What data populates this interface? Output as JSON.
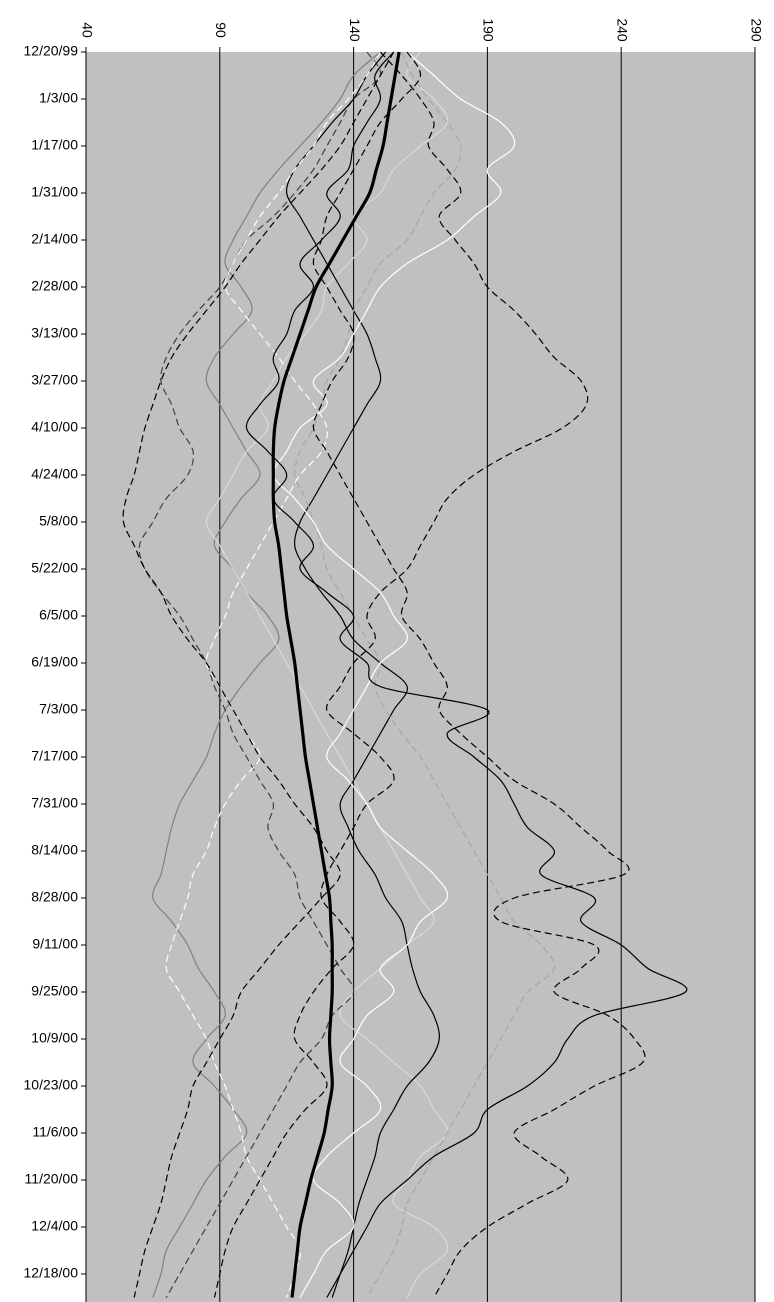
{
  "chart_data": {
    "type": "line",
    "categories": [
      "12/20/99",
      null,
      "1/3/00",
      null,
      "1/17/00",
      null,
      "1/31/00",
      null,
      "2/14/00",
      null,
      "2/28/00",
      null,
      "3/13/00",
      null,
      "3/27/00",
      null,
      "4/10/00",
      null,
      "4/24/00",
      null,
      "5/8/00",
      null,
      "5/22/00",
      null,
      "6/5/00",
      null,
      "6/19/00",
      null,
      "7/3/00",
      null,
      "7/17/00",
      null,
      "7/31/00",
      null,
      "8/14/00",
      null,
      "8/28/00",
      null,
      "9/11/00",
      null,
      "9/25/00",
      null,
      "10/9/00",
      null,
      "10/23/00",
      null,
      "11/6/00",
      null,
      "11/20/00",
      null,
      "12/4/00",
      null,
      "12/18/00",
      null
    ],
    "xlim": [
      40,
      290
    ],
    "xticks": [
      40,
      90,
      140,
      190,
      240,
      290
    ],
    "grid": true,
    "background": "#c0c0c0",
    "series": [
      {
        "color": "#808080",
        "dash": false,
        "width": 1.2,
        "values": [
          150,
          140,
          135,
          128,
          120,
          112,
          105,
          100,
          95,
          92,
          98,
          102,
          95,
          88,
          85,
          90,
          95,
          100,
          105,
          98,
          92,
          88,
          95,
          100,
          108,
          112,
          105,
          98,
          92,
          88,
          85,
          80,
          75,
          72,
          70,
          68,
          65,
          72,
          78,
          82,
          88,
          92,
          85,
          80,
          88,
          95,
          100,
          92,
          85,
          80,
          75,
          70,
          68,
          65
        ]
      },
      {
        "color": "#d9d9d9",
        "dash": false,
        "width": 1.2,
        "values": [
          165,
          160,
          170,
          175,
          165,
          155,
          150,
          140,
          145,
          138,
          130,
          128,
          122,
          115,
          110,
          105,
          108,
          100,
          95,
          90,
          85,
          90,
          95,
          100,
          105,
          110,
          115,
          120,
          125,
          130,
          135,
          140,
          145,
          150,
          155,
          160,
          165,
          170,
          160,
          150,
          140,
          135,
          145,
          155,
          165,
          170,
          175,
          165,
          160,
          155,
          170,
          175,
          165,
          160
        ]
      },
      {
        "color": "#404040",
        "dash": true,
        "width": 1.2,
        "values": [
          145,
          150,
          140,
          135,
          130,
          125,
          118,
          110,
          100,
          95,
          90,
          82,
          75,
          70,
          68,
          72,
          75,
          80,
          78,
          70,
          65,
          60,
          62,
          68,
          75,
          80,
          85,
          88,
          92,
          95,
          100,
          105,
          110,
          108,
          112,
          118,
          120,
          125,
          130,
          135,
          140,
          132,
          128,
          120,
          115,
          110,
          105,
          100,
          95,
          90,
          85,
          80,
          75,
          70
        ]
      },
      {
        "color": "#000000",
        "dash": false,
        "width": 1.2,
        "values": [
          152,
          145,
          140,
          132,
          125,
          118,
          115,
          120,
          125,
          130,
          135,
          140,
          145,
          148,
          150,
          145,
          140,
          135,
          130,
          125,
          120,
          118,
          122,
          128,
          135,
          140,
          150,
          160,
          155,
          150,
          145,
          140,
          135,
          138,
          142,
          148,
          152,
          158,
          160,
          162,
          165,
          170,
          172,
          168,
          160,
          155,
          150,
          148,
          145,
          142,
          140,
          138,
          135,
          132
        ]
      },
      {
        "color": "#a6a6a6",
        "dash": true,
        "width": 1.2,
        "values": [
          158,
          162,
          168,
          175,
          180,
          178,
          170,
          165,
          160,
          150,
          145,
          140,
          138,
          135,
          130,
          128,
          125,
          120,
          118,
          122,
          125,
          128,
          130,
          135,
          140,
          145,
          150,
          148,
          152,
          158,
          165,
          170,
          175,
          180,
          185,
          190,
          195,
          200,
          210,
          215,
          205,
          200,
          195,
          190,
          185,
          180,
          175,
          170,
          165,
          160,
          158,
          155,
          150,
          145
        ]
      },
      {
        "color": "#ffffff",
        "dash": true,
        "width": 1.2,
        "values": [
          150,
          145,
          138,
          130,
          125,
          118,
          112,
          105,
          100,
          95,
          92,
          98,
          105,
          112,
          118,
          125,
          130,
          128,
          120,
          115,
          110,
          105,
          100,
          95,
          92,
          88,
          85,
          90,
          95,
          100,
          105,
          98,
          92,
          88,
          85,
          80,
          78,
          75,
          72,
          70,
          75,
          80,
          85,
          88,
          92,
          95,
          98,
          100,
          105,
          110,
          115,
          120,
          118,
          115
        ]
      },
      {
        "color": "#000000",
        "dash": true,
        "width": 1.2,
        "values": [
          155,
          150,
          145,
          140,
          135,
          128,
          120,
          112,
          105,
          98,
          92,
          85,
          78,
          72,
          68,
          65,
          62,
          60,
          58,
          55,
          54,
          58,
          62,
          68,
          72,
          78,
          85,
          90,
          95,
          100,
          105,
          112,
          118,
          125,
          130,
          135,
          128,
          120,
          112,
          105,
          98,
          95,
          90,
          85,
          80,
          78,
          75,
          72,
          70,
          68,
          65,
          62,
          60,
          58
        ]
      },
      {
        "color": "#ffffff",
        "dash": false,
        "width": 1.2,
        "values": [
          160,
          170,
          180,
          195,
          200,
          190,
          195,
          185,
          175,
          160,
          150,
          145,
          140,
          135,
          125,
          130,
          120,
          115,
          110,
          118,
          125,
          130,
          140,
          150,
          155,
          160,
          150,
          145,
          140,
          135,
          130,
          138,
          145,
          150,
          160,
          170,
          175,
          165,
          160,
          150,
          155,
          145,
          140,
          135,
          145,
          150,
          140,
          130,
          125,
          135,
          140,
          130,
          125,
          120
        ]
      },
      {
        "color": "#000000",
        "dash": true,
        "width": 1.2,
        "values": [
          150,
          158,
          165,
          170,
          168,
          175,
          180,
          172,
          178,
          185,
          190,
          200,
          208,
          215,
          225,
          227,
          218,
          200,
          185,
          175,
          170,
          165,
          160,
          150,
          145,
          148,
          140,
          135,
          130,
          140,
          150,
          155,
          145,
          140,
          135,
          130,
          128,
          135,
          140,
          132,
          125,
          120,
          118,
          125,
          130,
          122,
          115,
          110,
          105,
          100,
          95,
          92,
          90,
          88
        ]
      },
      {
        "color": "#000000",
        "dash": true,
        "width": 1.2,
        "values": [
          160,
          165,
          158,
          150,
          145,
          140,
          135,
          130,
          128,
          125,
          130,
          135,
          140,
          138,
          132,
          128,
          125,
          130,
          135,
          140,
          145,
          150,
          155,
          160,
          158,
          165,
          170,
          175,
          172,
          180,
          190,
          200,
          215,
          225,
          235,
          241,
          200,
          195,
          230,
          225,
          215,
          235,
          245,
          248,
          230,
          215,
          200,
          210,
          220,
          205,
          190,
          180,
          175,
          170
        ]
      },
      {
        "color": "#000000",
        "dash": false,
        "width": 1.2,
        "values": [
          155,
          148,
          150,
          145,
          140,
          138,
          130,
          135,
          128,
          120,
          125,
          118,
          115,
          110,
          112,
          105,
          100,
          108,
          115,
          110,
          118,
          125,
          120,
          130,
          140,
          135,
          145,
          150,
          190,
          175,
          185,
          195,
          200,
          205,
          215,
          210,
          230,
          225,
          240,
          250,
          264,
          230,
          220,
          215,
          205,
          190,
          185,
          170,
          160,
          150,
          145,
          140,
          135,
          130
        ]
      },
      {
        "color": "#000000",
        "dash": false,
        "width": 3.2,
        "values": [
          157,
          155.5,
          154,
          152.5,
          151,
          148.5,
          146,
          141,
          136,
          131,
          126,
          123,
          120,
          117,
          114,
          112,
          110.5,
          110,
          110,
          110,
          110.5,
          112,
          113,
          114,
          115,
          116.5,
          118,
          119,
          120,
          121,
          122,
          123.5,
          125,
          126.5,
          128,
          129.5,
          131,
          131.5,
          132,
          132,
          132,
          131.5,
          131,
          131.5,
          132,
          130.5,
          129,
          126.5,
          124,
          122,
          120,
          119,
          118,
          117
        ]
      }
    ]
  }
}
